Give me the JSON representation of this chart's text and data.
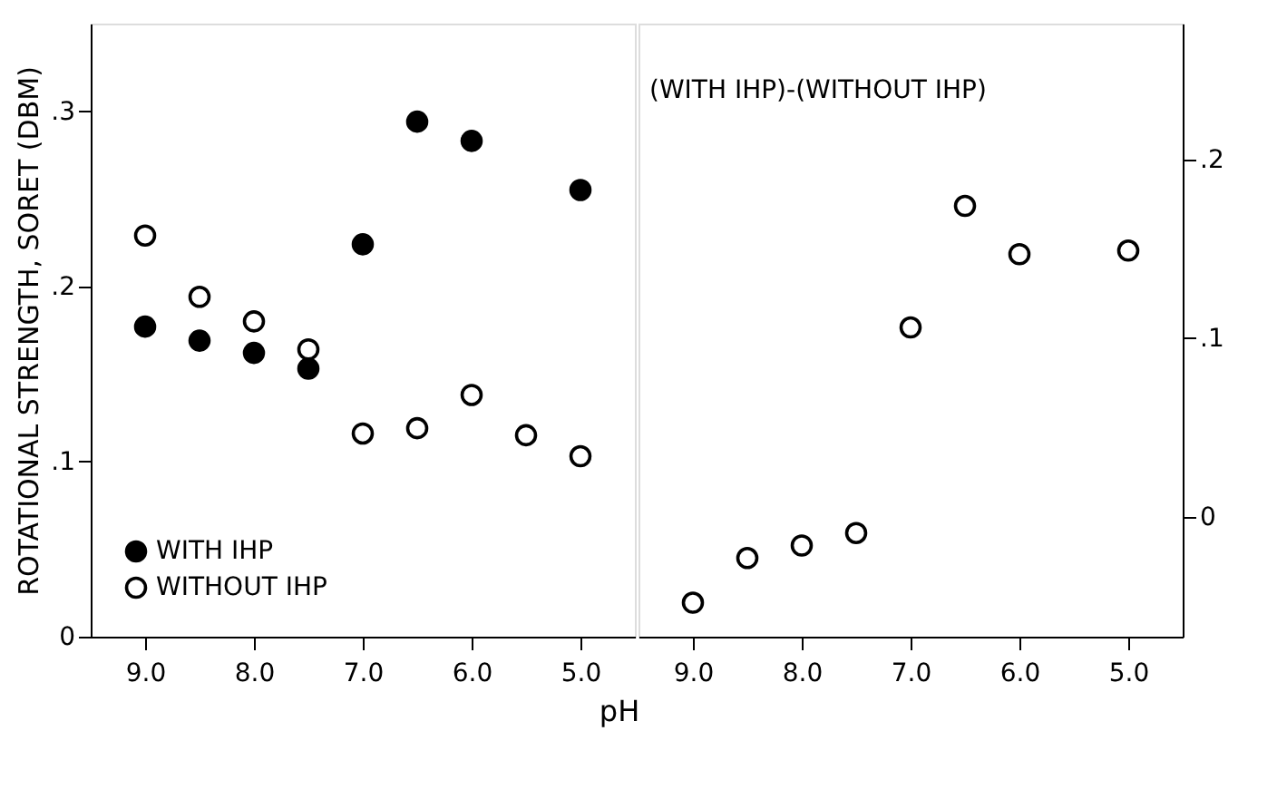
{
  "chart_data": [
    {
      "type": "scatter",
      "ylabel": "ROTATIONAL STRENGTH, SORET (DBM)",
      "xlabel": "pH",
      "x": [
        9.0,
        8.5,
        8.0,
        7.5,
        7.0,
        6.5,
        6.0,
        5.5,
        5.0
      ],
      "series": [
        {
          "name": "WITH IHP",
          "color": "#000000",
          "values": [
            0.177,
            0.169,
            0.162,
            0.153,
            0.224,
            0.294,
            0.283,
            null,
            0.255
          ]
        },
        {
          "name": "WITHOUT IHP",
          "color": "#000000",
          "values": [
            0.229,
            0.194,
            0.18,
            0.164,
            0.116,
            0.119,
            0.138,
            0.115,
            0.103
          ]
        }
      ],
      "xlim": [
        9.5,
        4.5
      ],
      "xticks": [
        {
          "value": 9,
          "label": "9.0"
        },
        {
          "value": 8,
          "label": "8.0"
        },
        {
          "value": 7,
          "label": "7.0"
        },
        {
          "value": 6,
          "label": "6.0"
        },
        {
          "value": 5,
          "label": "5.0"
        }
      ],
      "ylim": [
        0,
        0.35
      ],
      "yticks": [
        0,
        {
          "value": 0.1,
          "label": ".1"
        },
        {
          "value": 0.2,
          "label": ".2"
        },
        {
          "value": 0.3,
          "label": ".3"
        }
      ],
      "marker": "circle",
      "grid": false,
      "legend": "bottom left"
    },
    {
      "type": "scatter",
      "x": [
        9.0,
        8.5,
        8.0,
        7.5,
        7.0,
        6.5,
        6.0,
        5.0
      ],
      "series": [
        {
          "color": "#000000",
          "axis": "y2",
          "values": [
            -0.048,
            -0.023,
            -0.016,
            -0.009,
            0.106,
            0.174,
            0.147,
            0.149
          ]
        }
      ],
      "annotations": [
        "(WITH IHP)-(WITHOUT IHP)"
      ],
      "xlim": [
        9.5,
        4.5
      ],
      "xticks": [
        {
          "value": 9,
          "label": "9.0"
        },
        {
          "value": 8,
          "label": "8.0"
        },
        {
          "value": 7,
          "label": "7.0"
        },
        {
          "value": 6,
          "label": "6.0"
        },
        {
          "value": 5,
          "label": "5.0"
        }
      ],
      "y2lim": [
        -0.067,
        0.276
      ],
      "y2ticks": [
        0,
        {
          "value": 0.1,
          "label": ".1"
        },
        {
          "value": 0.2,
          "label": ".2"
        }
      ],
      "marker": "circle",
      "grid": false,
      "legend": false
    }
  ]
}
